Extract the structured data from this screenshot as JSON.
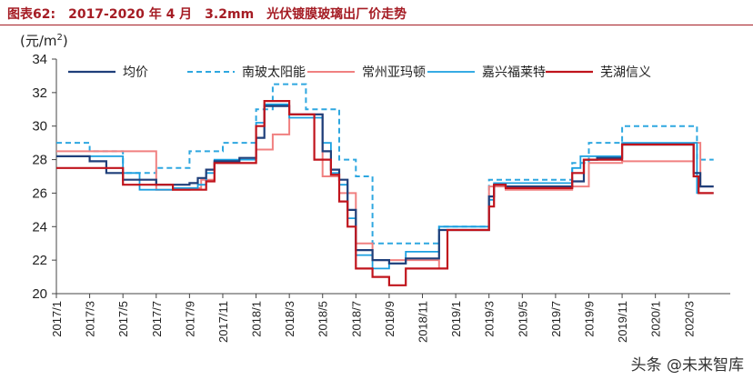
{
  "figure": {
    "title": "图表62:　2017-2020 年 4 月　3.2mm　光伏镀膜玻璃出厂价走势",
    "unit_label": "(元/m2)",
    "watermark": "头条 @未来智库"
  },
  "chart_data": {
    "type": "line",
    "ylim": [
      20,
      34
    ],
    "yticks": [
      20,
      22,
      24,
      26,
      28,
      30,
      32,
      34
    ],
    "x_range": [
      0,
      40.5
    ],
    "xticks": [
      {
        "label": "2017/1",
        "m": 0
      },
      {
        "label": "2017/3",
        "m": 2
      },
      {
        "label": "2017/5",
        "m": 4
      },
      {
        "label": "2017/7",
        "m": 6
      },
      {
        "label": "2017/9",
        "m": 8
      },
      {
        "label": "2017/11",
        "m": 10
      },
      {
        "label": "2018/1",
        "m": 12
      },
      {
        "label": "2018/3",
        "m": 14
      },
      {
        "label": "2018/5",
        "m": 16
      },
      {
        "label": "2018/7",
        "m": 18
      },
      {
        "label": "2018/9",
        "m": 20
      },
      {
        "label": "2018/11",
        "m": 22
      },
      {
        "label": "2019/1",
        "m": 24
      },
      {
        "label": "2019/3",
        "m": 26
      },
      {
        "label": "2019/5",
        "m": 28
      },
      {
        "label": "2019/7",
        "m": 30
      },
      {
        "label": "2019/9",
        "m": 32
      },
      {
        "label": "2019/11",
        "m": 34
      },
      {
        "label": "2020/1",
        "m": 36
      },
      {
        "label": "2020/3",
        "m": 38
      }
    ],
    "legend_position": "top",
    "grid": false,
    "series": [
      {
        "name": "均价",
        "color": "#1f3f7a",
        "dash": "",
        "width": 2.2,
        "points": [
          [
            0,
            28.2
          ],
          [
            2,
            28.2
          ],
          [
            2,
            27.9
          ],
          [
            3,
            27.9
          ],
          [
            3,
            27.2
          ],
          [
            4,
            27.2
          ],
          [
            4,
            26.8
          ],
          [
            6,
            26.8
          ],
          [
            6,
            26.5
          ],
          [
            8,
            26.5
          ],
          [
            8,
            26.6
          ],
          [
            8.5,
            26.6
          ],
          [
            8.5,
            26.9
          ],
          [
            9,
            26.9
          ],
          [
            9,
            27.4
          ],
          [
            9.5,
            27.4
          ],
          [
            9.5,
            27.9
          ],
          [
            11,
            27.9
          ],
          [
            11,
            28.1
          ],
          [
            12,
            28.1
          ],
          [
            12,
            29.3
          ],
          [
            12.5,
            29.3
          ],
          [
            12.5,
            31.2
          ],
          [
            14,
            31.2
          ],
          [
            14,
            30.7
          ],
          [
            16,
            30.7
          ],
          [
            16,
            28.5
          ],
          [
            16.5,
            28.5
          ],
          [
            16.5,
            27.4
          ],
          [
            17,
            27.4
          ],
          [
            17,
            26.8
          ],
          [
            17.5,
            26.8
          ],
          [
            17.5,
            25
          ],
          [
            18,
            25
          ],
          [
            18,
            22.6
          ],
          [
            19,
            22.6
          ],
          [
            19,
            22
          ],
          [
            20,
            22
          ],
          [
            20,
            21.8
          ],
          [
            21,
            21.8
          ],
          [
            21,
            22.1
          ],
          [
            23,
            22.1
          ],
          [
            23,
            23.8
          ],
          [
            26,
            23.8
          ],
          [
            26,
            25.8
          ],
          [
            26.3,
            25.8
          ],
          [
            26.3,
            26.5
          ],
          [
            27,
            26.5
          ],
          [
            27,
            26.4
          ],
          [
            31,
            26.4
          ],
          [
            31,
            26.7
          ],
          [
            31.7,
            26.7
          ],
          [
            31.7,
            28
          ],
          [
            32.5,
            28
          ],
          [
            32.5,
            28.1
          ],
          [
            34,
            28.1
          ],
          [
            34,
            28.9
          ],
          [
            38.3,
            28.9
          ],
          [
            38.3,
            27.2
          ],
          [
            38.7,
            27.2
          ],
          [
            38.7,
            26.4
          ],
          [
            39.5,
            26.4
          ]
        ]
      },
      {
        "name": "南玻太阳能",
        "color": "#2ea7e0",
        "dash": "6,4",
        "width": 2,
        "points": [
          [
            0,
            29
          ],
          [
            2,
            29
          ],
          [
            2,
            28.5
          ],
          [
            4,
            28.5
          ],
          [
            4,
            27.2
          ],
          [
            6,
            27.2
          ],
          [
            6,
            27.5
          ],
          [
            8,
            27.5
          ],
          [
            8,
            28.5
          ],
          [
            10,
            28.5
          ],
          [
            10,
            29
          ],
          [
            12,
            29
          ],
          [
            12,
            31
          ],
          [
            13,
            31
          ],
          [
            13,
            32.5
          ],
          [
            15,
            32.5
          ],
          [
            15,
            31
          ],
          [
            17,
            31
          ],
          [
            17,
            28
          ],
          [
            18,
            28
          ],
          [
            18,
            27
          ],
          [
            19,
            27
          ],
          [
            19,
            23
          ],
          [
            23,
            23
          ],
          [
            23,
            24
          ],
          [
            26,
            24
          ],
          [
            26,
            26.8
          ],
          [
            31,
            26.8
          ],
          [
            31,
            27.8
          ],
          [
            32,
            27.8
          ],
          [
            32,
            29
          ],
          [
            34,
            29
          ],
          [
            34,
            30
          ],
          [
            38.5,
            30
          ],
          [
            38.5,
            28
          ],
          [
            39.5,
            28
          ]
        ]
      },
      {
        "name": "常州亚玛顿",
        "color": "#f08080",
        "dash": "",
        "width": 2,
        "points": [
          [
            0,
            28.5
          ],
          [
            6,
            28.5
          ],
          [
            6,
            26.2
          ],
          [
            8,
            26.2
          ],
          [
            8,
            26.3
          ],
          [
            8.7,
            26.3
          ],
          [
            8.7,
            26.8
          ],
          [
            9.5,
            26.8
          ],
          [
            9.5,
            27.8
          ],
          [
            12,
            27.8
          ],
          [
            12,
            28.6
          ],
          [
            13,
            28.6
          ],
          [
            13,
            29.5
          ],
          [
            14,
            29.5
          ],
          [
            14,
            30.7
          ],
          [
            16,
            30.7
          ],
          [
            16,
            27
          ],
          [
            17,
            27
          ],
          [
            17,
            26
          ],
          [
            18,
            26
          ],
          [
            18,
            23
          ],
          [
            19,
            23
          ],
          [
            19,
            22
          ],
          [
            23,
            22
          ],
          [
            23,
            21.5
          ],
          [
            23.5,
            21.5
          ],
          [
            23.5,
            23.8
          ],
          [
            26,
            23.8
          ],
          [
            26,
            26.4
          ],
          [
            27,
            26.4
          ],
          [
            27,
            26.2
          ],
          [
            31,
            26.2
          ],
          [
            31,
            26.4
          ],
          [
            32,
            26.4
          ],
          [
            32,
            27.8
          ],
          [
            34,
            27.8
          ],
          [
            34,
            27.9
          ],
          [
            38.3,
            27.9
          ],
          [
            38.3,
            29
          ],
          [
            38.7,
            29
          ],
          [
            38.7,
            26.4
          ],
          [
            39.5,
            26.4
          ]
        ]
      },
      {
        "name": "嘉兴福莱特",
        "color": "#1a9fe0",
        "dash": "",
        "width": 1.8,
        "points": [
          [
            0,
            28.2
          ],
          [
            4,
            28.2
          ],
          [
            4,
            27.2
          ],
          [
            5,
            27.2
          ],
          [
            5,
            26.2
          ],
          [
            7,
            26.2
          ],
          [
            7,
            26.3
          ],
          [
            8.5,
            26.3
          ],
          [
            8.5,
            26.5
          ],
          [
            9,
            26.5
          ],
          [
            9,
            27.2
          ],
          [
            9.5,
            27.2
          ],
          [
            9.5,
            28
          ],
          [
            12,
            28
          ],
          [
            12,
            30.2
          ],
          [
            12.5,
            30.2
          ],
          [
            12.5,
            31.3
          ],
          [
            14,
            31.3
          ],
          [
            14,
            30.5
          ],
          [
            16,
            30.5
          ],
          [
            16,
            29
          ],
          [
            16.5,
            29
          ],
          [
            16.5,
            27.2
          ],
          [
            17,
            27.2
          ],
          [
            17,
            26.5
          ],
          [
            17.5,
            26.5
          ],
          [
            17.5,
            24.5
          ],
          [
            18,
            24.5
          ],
          [
            18,
            22.3
          ],
          [
            19,
            22.3
          ],
          [
            19,
            21.5
          ],
          [
            20,
            21.5
          ],
          [
            20,
            21.8
          ],
          [
            21,
            21.8
          ],
          [
            21,
            22.5
          ],
          [
            23,
            22.5
          ],
          [
            23,
            24
          ],
          [
            26,
            24
          ],
          [
            26,
            25.6
          ],
          [
            26.3,
            25.6
          ],
          [
            26.3,
            26.6
          ],
          [
            31,
            26.6
          ],
          [
            31,
            27.5
          ],
          [
            31.5,
            27.5
          ],
          [
            31.5,
            28.2
          ],
          [
            34,
            28.2
          ],
          [
            34,
            29
          ],
          [
            38.5,
            29
          ],
          [
            38.5,
            26
          ],
          [
            39.5,
            26
          ]
        ]
      },
      {
        "name": "芜湖信义",
        "color": "#c0141c",
        "dash": "",
        "width": 2.2,
        "points": [
          [
            0,
            27.5
          ],
          [
            4,
            27.5
          ],
          [
            4,
            26.5
          ],
          [
            7,
            26.5
          ],
          [
            7,
            26.2
          ],
          [
            9,
            26.2
          ],
          [
            9,
            26.7
          ],
          [
            9.5,
            26.7
          ],
          [
            9.5,
            27.8
          ],
          [
            12,
            27.8
          ],
          [
            12,
            30
          ],
          [
            12.5,
            30
          ],
          [
            12.5,
            31.5
          ],
          [
            14,
            31.5
          ],
          [
            14,
            30.7
          ],
          [
            15.5,
            30.7
          ],
          [
            15.5,
            28
          ],
          [
            16.5,
            28
          ],
          [
            16.5,
            27.1
          ],
          [
            17,
            27.1
          ],
          [
            17,
            25.5
          ],
          [
            17.5,
            25.5
          ],
          [
            17.5,
            24
          ],
          [
            18,
            24
          ],
          [
            18,
            21.5
          ],
          [
            19,
            21.5
          ],
          [
            19,
            21
          ],
          [
            20,
            21
          ],
          [
            20,
            20.5
          ],
          [
            21,
            20.5
          ],
          [
            21,
            21.5
          ],
          [
            23.5,
            21.5
          ],
          [
            23.5,
            23.8
          ],
          [
            26,
            23.8
          ],
          [
            26,
            25.2
          ],
          [
            26.3,
            25.2
          ],
          [
            26.3,
            26.5
          ],
          [
            27,
            26.5
          ],
          [
            27,
            26.3
          ],
          [
            31,
            26.3
          ],
          [
            31,
            27.2
          ],
          [
            31.7,
            27.2
          ],
          [
            31.7,
            28
          ],
          [
            34,
            28
          ],
          [
            34,
            28.9
          ],
          [
            38.3,
            28.9
          ],
          [
            38.3,
            27
          ],
          [
            38.6,
            27
          ],
          [
            38.6,
            26
          ],
          [
            39.5,
            26
          ]
        ]
      }
    ]
  }
}
